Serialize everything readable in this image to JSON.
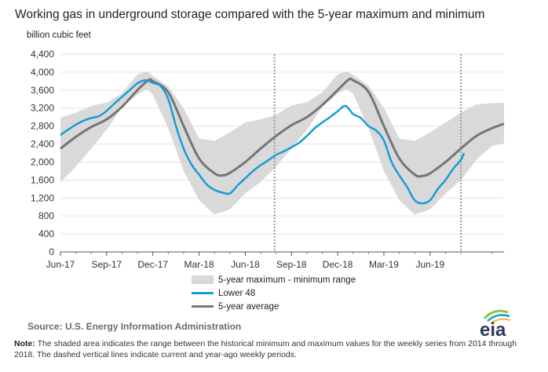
{
  "title": "Working gas in underground  storage compared with the 5-year maximum and minimum",
  "unit_label": "billion cubic feet",
  "legend": {
    "range": "5-year maximum - minimum range",
    "lower48": "Lower 48",
    "average": "5-year average"
  },
  "source": "Source:  U.S. Energy Information Administration",
  "note_label": "Note:",
  "note_text": " The shaded area indicates the range between the historical minimum and maximum values for the weekly series from 2014 through 2018. The dashed vertical lines indicate current and year-ago weekly periods.",
  "logo_text": "eia",
  "colors": {
    "lower48": "#1a9bd7",
    "average": "#757575",
    "band": "#d9d9d9",
    "dashed": "#9a9a9a"
  },
  "chart_data": {
    "type": "area",
    "title": "Working gas in underground  storage compared with the 5-year maximum and minimum",
    "ylabel": "billion cubic feet",
    "xlabel": "",
    "ylim": [
      0,
      4400
    ],
    "yticks": [
      0,
      400,
      800,
      1200,
      1600,
      2000,
      2400,
      2800,
      3200,
      3600,
      4000,
      4400
    ],
    "ytick_labels": [
      "0",
      "400",
      "800",
      "1,200",
      "1,600",
      "2,000",
      "2,400",
      "2,800",
      "3,200",
      "3,600",
      "4,000",
      "4,400"
    ],
    "xlim": [
      0,
      28.8
    ],
    "xticks": [
      0,
      3,
      6,
      9,
      12,
      15,
      18,
      21,
      24
    ],
    "xtick_labels": [
      "Jun-17",
      "Sep-17",
      "Dec-17",
      "Mar-18",
      "Jun-18",
      "Sep-18",
      "Dec-18",
      "Mar-19",
      "Jun-19"
    ],
    "dashed_lines_x": [
      13.9,
      26.0
    ],
    "series": [
      {
        "name": "5-year maximum - minimum range",
        "kind": "band",
        "points": [
          [
            0,
            1550,
            2980
          ],
          [
            1,
            1900,
            3100
          ],
          [
            2,
            2300,
            3250
          ],
          [
            3,
            2720,
            3320
          ],
          [
            4,
            3230,
            3530
          ],
          [
            5,
            3500,
            3950
          ],
          [
            5.6,
            3620,
            4020
          ],
          [
            6,
            3500,
            3920
          ],
          [
            7,
            2750,
            3680
          ],
          [
            8,
            1800,
            3200
          ],
          [
            9,
            1150,
            2520
          ],
          [
            10,
            830,
            2470
          ],
          [
            11,
            950,
            2660
          ],
          [
            12,
            1300,
            2880
          ],
          [
            13,
            1560,
            2950
          ],
          [
            14,
            1900,
            3050
          ],
          [
            15,
            2300,
            3260
          ],
          [
            16,
            2720,
            3330
          ],
          [
            17,
            3230,
            3550
          ],
          [
            18,
            3520,
            3950
          ],
          [
            18.6,
            3620,
            4020
          ],
          [
            19,
            3520,
            3940
          ],
          [
            20,
            2750,
            3700
          ],
          [
            21,
            1800,
            3200
          ],
          [
            22,
            1150,
            2520
          ],
          [
            23,
            830,
            2470
          ],
          [
            24,
            950,
            2660
          ],
          [
            25,
            1300,
            2880
          ],
          [
            26,
            1600,
            3100
          ],
          [
            27,
            2050,
            3280
          ],
          [
            28,
            2350,
            3310
          ],
          [
            28.8,
            2420,
            3320
          ]
        ]
      },
      {
        "name": "Lower 48",
        "kind": "line",
        "points": [
          [
            0,
            2600
          ],
          [
            0.5,
            2720
          ],
          [
            1,
            2830
          ],
          [
            1.5,
            2920
          ],
          [
            2,
            2980
          ],
          [
            2.5,
            3020
          ],
          [
            3,
            3140
          ],
          [
            3.5,
            3300
          ],
          [
            4,
            3450
          ],
          [
            4.5,
            3600
          ],
          [
            5,
            3750
          ],
          [
            5.5,
            3820
          ],
          [
            6,
            3760
          ],
          [
            6.5,
            3690
          ],
          [
            7,
            3400
          ],
          [
            7.5,
            2800
          ],
          [
            8,
            2300
          ],
          [
            8.5,
            1950
          ],
          [
            9,
            1720
          ],
          [
            9.5,
            1500
          ],
          [
            10,
            1380
          ],
          [
            10.5,
            1320
          ],
          [
            11,
            1300
          ],
          [
            11.5,
            1480
          ],
          [
            12,
            1640
          ],
          [
            12.5,
            1800
          ],
          [
            13,
            1930
          ],
          [
            13.5,
            2040
          ],
          [
            14,
            2160
          ],
          [
            14.5,
            2240
          ],
          [
            15,
            2330
          ],
          [
            15.5,
            2430
          ],
          [
            16,
            2580
          ],
          [
            16.5,
            2750
          ],
          [
            17,
            2880
          ],
          [
            17.5,
            3000
          ],
          [
            18,
            3130
          ],
          [
            18.5,
            3250
          ],
          [
            19,
            3070
          ],
          [
            19.5,
            2980
          ],
          [
            20,
            2800
          ],
          [
            20.5,
            2700
          ],
          [
            21,
            2480
          ],
          [
            21.5,
            2000
          ],
          [
            22,
            1700
          ],
          [
            22.5,
            1450
          ],
          [
            23,
            1150
          ],
          [
            23.5,
            1080
          ],
          [
            24,
            1150
          ],
          [
            24.5,
            1400
          ],
          [
            25,
            1600
          ],
          [
            25.5,
            1850
          ],
          [
            26,
            2050
          ],
          [
            26.2,
            2200
          ]
        ]
      },
      {
        "name": "5-year average",
        "kind": "line",
        "points": [
          [
            0,
            2300
          ],
          [
            1,
            2560
          ],
          [
            2,
            2780
          ],
          [
            3,
            2950
          ],
          [
            4,
            3230
          ],
          [
            5,
            3600
          ],
          [
            5.7,
            3820
          ],
          [
            6,
            3800
          ],
          [
            7,
            3550
          ],
          [
            8,
            2800
          ],
          [
            9,
            2080
          ],
          [
            10,
            1750
          ],
          [
            10.5,
            1700
          ],
          [
            11,
            1760
          ],
          [
            12,
            2000
          ],
          [
            13,
            2300
          ],
          [
            14,
            2580
          ],
          [
            15,
            2820
          ],
          [
            16,
            3000
          ],
          [
            17,
            3270
          ],
          [
            18,
            3600
          ],
          [
            18.7,
            3830
          ],
          [
            19,
            3820
          ],
          [
            20,
            3560
          ],
          [
            21,
            2800
          ],
          [
            22,
            2080
          ],
          [
            23,
            1720
          ],
          [
            23.5,
            1690
          ],
          [
            24,
            1750
          ],
          [
            25,
            2000
          ],
          [
            26,
            2300
          ],
          [
            27,
            2580
          ],
          [
            28,
            2750
          ],
          [
            28.8,
            2850
          ]
        ]
      }
    ]
  }
}
